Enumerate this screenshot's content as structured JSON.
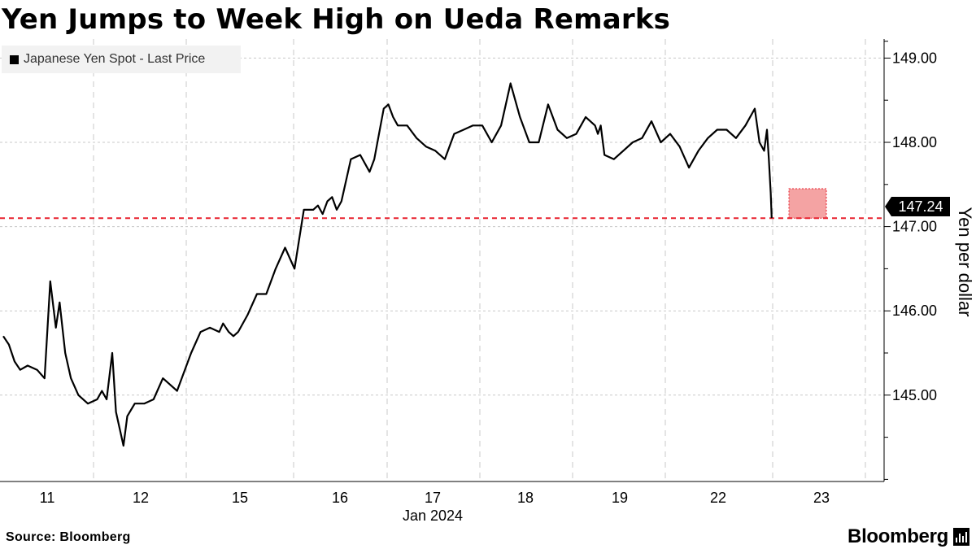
{
  "chart_data": {
    "type": "line",
    "title": "Yen Jumps to Week High on Ueda Remarks",
    "ylabel": "Yen per dollar",
    "xlabel": "Jan 2024",
    "legend": [
      "Japanese Yen Spot - Last Price"
    ],
    "legend_position": "top-left",
    "ylim": [
      144.0,
      149.2
    ],
    "y_ticks": [
      "149.00",
      "148.00",
      "147.00",
      "146.00",
      "145.00"
    ],
    "x_ticks": [
      "11",
      "12",
      "15",
      "16",
      "17",
      "18",
      "19",
      "22",
      "23"
    ],
    "last_value_label": "147.24",
    "reference_line": 147.1,
    "grid": true,
    "colors": {
      "line": "#000000",
      "reference": "#e8222f",
      "highlight": "#f4a3a3"
    },
    "series": [
      {
        "name": "Japanese Yen Spot - Last Price",
        "x": [
          0.0,
          0.06,
          0.12,
          0.18,
          0.26,
          0.36,
          0.44,
          0.5,
          0.56,
          0.6,
          0.62,
          0.66,
          0.72,
          0.8,
          0.9,
          1.0,
          1.05,
          1.1,
          1.16,
          1.2,
          1.28,
          1.32,
          1.4,
          1.5,
          1.6,
          1.7,
          1.85,
          2.0,
          2.1,
          2.2,
          2.3,
          2.34,
          2.4,
          2.45,
          2.5,
          2.6,
          2.7,
          2.8,
          2.9,
          3.0,
          3.1,
          3.2,
          3.3,
          3.35,
          3.4,
          3.45,
          3.5,
          3.55,
          3.6,
          3.7,
          3.8,
          3.9,
          3.95,
          4.0,
          4.05,
          4.1,
          4.15,
          4.2,
          4.3,
          4.4,
          4.5,
          4.6,
          4.7,
          4.8,
          4.9,
          5.0,
          5.1,
          5.2,
          5.3,
          5.4,
          5.5,
          5.6,
          5.7,
          5.8,
          5.9,
          6.0,
          6.1,
          6.2,
          6.3,
          6.33,
          6.36,
          6.4,
          6.5,
          6.6,
          6.7,
          6.8,
          6.9,
          7.0,
          7.1,
          7.2,
          7.3,
          7.4,
          7.5,
          7.6,
          7.7,
          7.8,
          7.9,
          8.0,
          8.05,
          8.1,
          8.13,
          8.15,
          8.17,
          8.18
        ],
        "y": [
          145.7,
          145.6,
          145.4,
          145.3,
          145.35,
          145.3,
          145.2,
          146.35,
          145.8,
          146.1,
          145.9,
          145.5,
          145.2,
          145.0,
          144.9,
          144.95,
          145.05,
          144.95,
          145.5,
          144.8,
          144.4,
          144.75,
          144.9,
          144.9,
          144.95,
          145.2,
          145.05,
          145.5,
          145.75,
          145.8,
          145.75,
          145.85,
          145.75,
          145.7,
          145.75,
          145.95,
          146.2,
          146.2,
          146.5,
          146.75,
          146.5,
          147.2,
          147.2,
          147.25,
          147.15,
          147.3,
          147.35,
          147.2,
          147.3,
          147.8,
          147.85,
          147.65,
          147.8,
          148.1,
          148.4,
          148.45,
          148.3,
          148.2,
          148.2,
          148.05,
          147.95,
          147.9,
          147.8,
          148.1,
          148.15,
          148.2,
          148.2,
          148.0,
          148.2,
          148.7,
          148.3,
          148.0,
          148.0,
          148.45,
          148.15,
          148.05,
          148.1,
          148.3,
          148.2,
          148.1,
          148.2,
          147.85,
          147.8,
          147.9,
          148.0,
          148.05,
          148.25,
          148.0,
          148.1,
          147.95,
          147.7,
          147.9,
          148.05,
          148.15,
          148.15,
          148.05,
          148.2,
          148.4,
          148.0,
          147.9,
          148.15,
          147.8,
          147.4,
          147.1
        ]
      }
    ]
  }
}
